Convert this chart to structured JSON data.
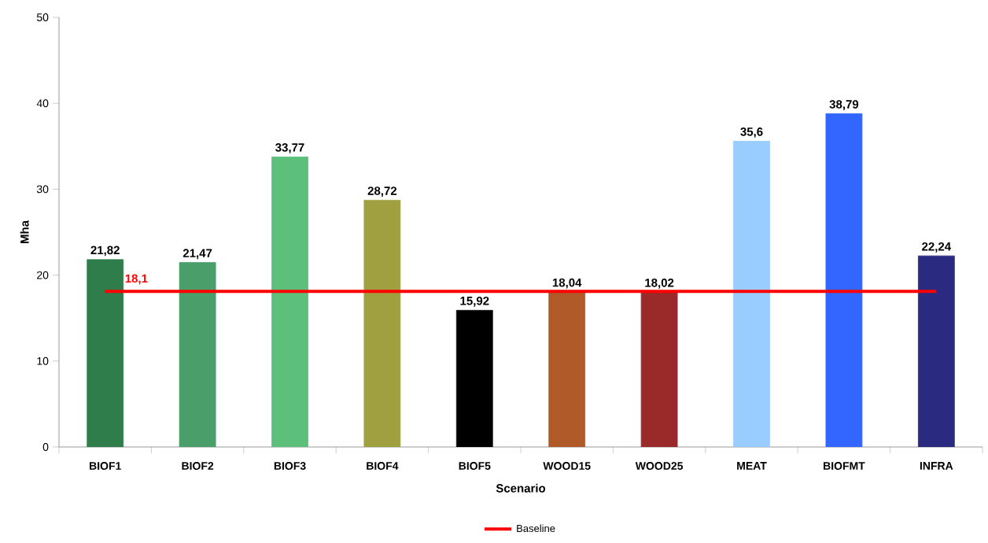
{
  "chart_data": {
    "type": "bar",
    "xlabel": "Scenario",
    "ylabel": "Mha",
    "categories": [
      "BIOF1",
      "BIOF2",
      "BIOF3",
      "BIOF4",
      "BIOF5",
      "WOOD15",
      "WOOD25",
      "MEAT",
      "BIOFMT",
      "INFRA"
    ],
    "ylim": [
      0,
      50
    ],
    "yticks": [
      0,
      10,
      20,
      30,
      40,
      50
    ],
    "legend": "bottom",
    "series": [
      {
        "colors": [
          "#2e7d4a",
          "#4a9e6a",
          "#5cbf7a",
          "#a0a040",
          "#000000",
          "#b05a2a",
          "#9a2a2a",
          "#99ccff",
          "#3366ff",
          "#2a2a80"
        ],
        "values": [
          21.82,
          21.47,
          33.77,
          28.72,
          15.92,
          18.04,
          18.02,
          35.6,
          38.79,
          22.24
        ],
        "value_labels": [
          "21,82",
          "21,47",
          "33,77",
          "28,72",
          "15,92",
          "18,04",
          "18,02",
          "35,6",
          "38,79",
          "22,24"
        ]
      },
      {
        "type": "line",
        "name": "Baseline",
        "color": "#ff0000",
        "values": [
          18.1,
          18.1,
          18.1,
          18.1,
          18.1,
          18.1,
          18.1,
          18.1,
          18.1,
          18.1
        ],
        "value_labels": [
          "18,1",
          null,
          null,
          null,
          null,
          null,
          null,
          null,
          null,
          null
        ]
      }
    ]
  }
}
